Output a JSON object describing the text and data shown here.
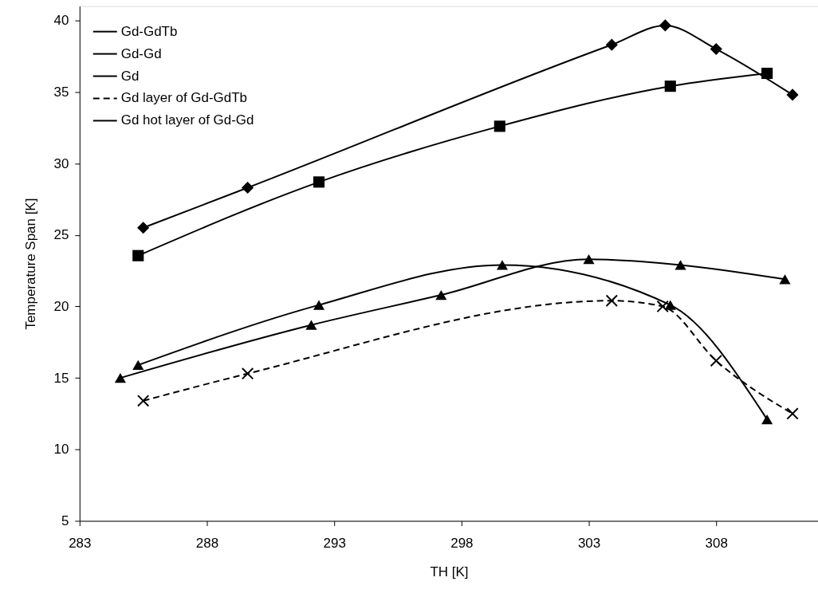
{
  "chart_data": {
    "type": "line",
    "xlabel": "TH [K]",
    "ylabel": "Temperature Span [K]",
    "xlim": [
      283,
      312
    ],
    "ylim": [
      5,
      41
    ],
    "xticks": [
      283,
      288,
      293,
      298,
      303,
      308
    ],
    "yticks": [
      5,
      10,
      15,
      20,
      25,
      30,
      35,
      40
    ],
    "grid": false,
    "legend": "top left",
    "series": [
      {
        "name": "Gd-GdTb",
        "color": "#000000",
        "marker": "diamond",
        "line_style": "solid",
        "x": [
          285.5,
          289.6,
          303.9,
          306.0,
          308.0,
          311.0
        ],
        "values": [
          25.5,
          28.3,
          38.3,
          39.65,
          38.0,
          34.8
        ]
      },
      {
        "name": "Gd-Gd",
        "color": "#000000",
        "marker": "square",
        "line_style": "solid",
        "x": [
          285.3,
          292.4,
          299.5,
          306.2,
          310.0
        ],
        "values": [
          23.55,
          28.7,
          32.6,
          35.4,
          36.3
        ]
      },
      {
        "name": "Gd",
        "color": "#000000",
        "marker": "triangle",
        "line_style": "solid",
        "x": [
          284.6,
          292.1,
          297.2,
          303.0,
          306.6,
          310.7
        ],
        "values": [
          15.0,
          18.7,
          20.8,
          23.3,
          22.9,
          21.9
        ]
      },
      {
        "name": "Gd layer of Gd-GdTb",
        "color": "#000000",
        "marker": "cross",
        "line_style": "dashed",
        "x": [
          285.5,
          289.6,
          303.9,
          305.9,
          308.0,
          311.0
        ],
        "values": [
          13.4,
          15.3,
          20.4,
          20.0,
          16.2,
          12.5
        ]
      },
      {
        "name": "Gd hot layer of Gd-Gd",
        "color": "#000000",
        "marker": "triangle",
        "line_style": "solid",
        "x": [
          285.3,
          292.4,
          299.6,
          306.2,
          310.0
        ],
        "values": [
          15.9,
          20.1,
          22.9,
          20.1,
          12.1
        ]
      }
    ]
  }
}
